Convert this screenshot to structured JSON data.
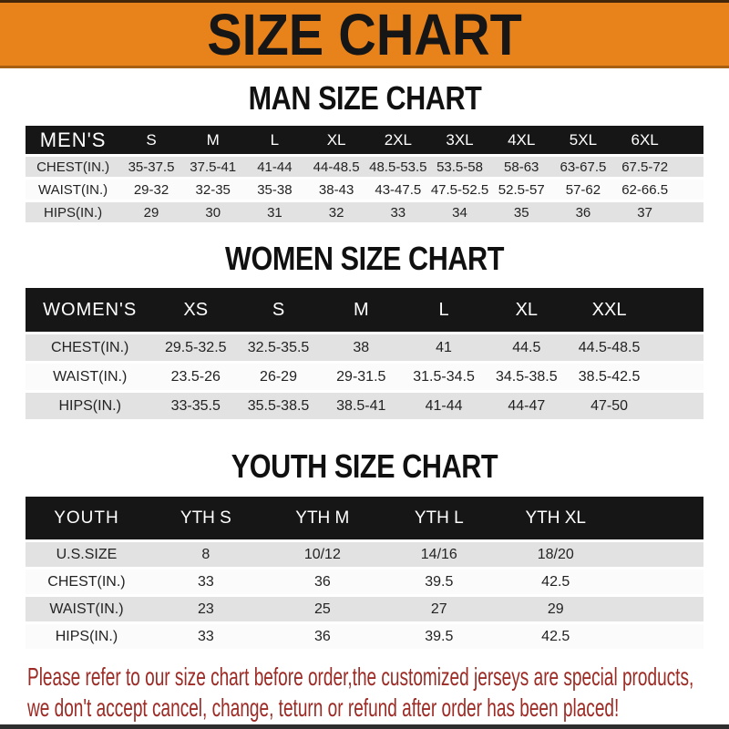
{
  "banner": {
    "title": "SIZE CHART"
  },
  "colors": {
    "banner_bg": "#E8821B",
    "banner_border": "#A95F12",
    "banner_text": "#161616",
    "top_strip": "#42270D",
    "header_bar_bg": "#161616",
    "header_bar_text": "#FFFFFF",
    "row_stripe": "#E2E2E2",
    "row_plain": "#FBFBFB",
    "body_text": "#232323",
    "disclaimer_text": "#9C2B25",
    "bottom_strip": "#2E2E2E"
  },
  "sections": [
    {
      "heading": "MAN SIZE CHART",
      "header_label": "MEN'S",
      "columns": [
        "S",
        "M",
        "L",
        "XL",
        "2XL",
        "3XL",
        "4XL",
        "5XL",
        "6XL"
      ],
      "rows": [
        {
          "label": "CHEST(IN.)",
          "values": [
            "35-37.5",
            "37.5-41",
            "41-44",
            "44-48.5",
            "48.5-53.5",
            "53.5-58",
            "58-63",
            "63-67.5",
            "67.5-72"
          ]
        },
        {
          "label": "WAIST(IN.)",
          "values": [
            "29-32",
            "32-35",
            "35-38",
            "38-43",
            "43-47.5",
            "47.5-52.5",
            "52.5-57",
            "57-62",
            "62-66.5"
          ]
        },
        {
          "label": "HIPS(IN.)",
          "values": [
            "29",
            "30",
            "31",
            "32",
            "33",
            "34",
            "35",
            "36",
            "37"
          ]
        }
      ]
    },
    {
      "heading": "WOMEN SIZE CHART",
      "header_label": "WOMEN'S",
      "columns": [
        "XS",
        "S",
        "M",
        "L",
        "XL",
        "XXL"
      ],
      "rows": [
        {
          "label": "CHEST(IN.)",
          "values": [
            "29.5-32.5",
            "32.5-35.5",
            "38",
            "41",
            "44.5",
            "44.5-48.5"
          ]
        },
        {
          "label": "WAIST(IN.)",
          "values": [
            "23.5-26",
            "26-29",
            "29-31.5",
            "31.5-34.5",
            "34.5-38.5",
            "38.5-42.5"
          ]
        },
        {
          "label": "HIPS(IN.)",
          "values": [
            "33-35.5",
            "35.5-38.5",
            "38.5-41",
            "41-44",
            "44-47",
            "47-50"
          ]
        }
      ]
    },
    {
      "heading": "YOUTH SIZE CHART",
      "header_label": "YOUTH",
      "columns": [
        "YTH S",
        "YTH M",
        "YTH L",
        "YTH XL"
      ],
      "rows": [
        {
          "label": "U.S.SIZE",
          "values": [
            "8",
            "10/12",
            "14/16",
            "18/20"
          ]
        },
        {
          "label": "CHEST(IN.)",
          "values": [
            "33",
            "36",
            "39.5",
            "42.5"
          ]
        },
        {
          "label": "WAIST(IN.)",
          "values": [
            "23",
            "25",
            "27",
            "29"
          ]
        },
        {
          "label": "HIPS(IN.)",
          "values": [
            "33",
            "36",
            "39.5",
            "42.5"
          ]
        }
      ]
    }
  ],
  "disclaimer": {
    "line1": "Please refer to our size chart before order,the customized jerseys are special products,",
    "line2": "we don't accept cancel, change, teturn or refund after order has been placed!"
  }
}
